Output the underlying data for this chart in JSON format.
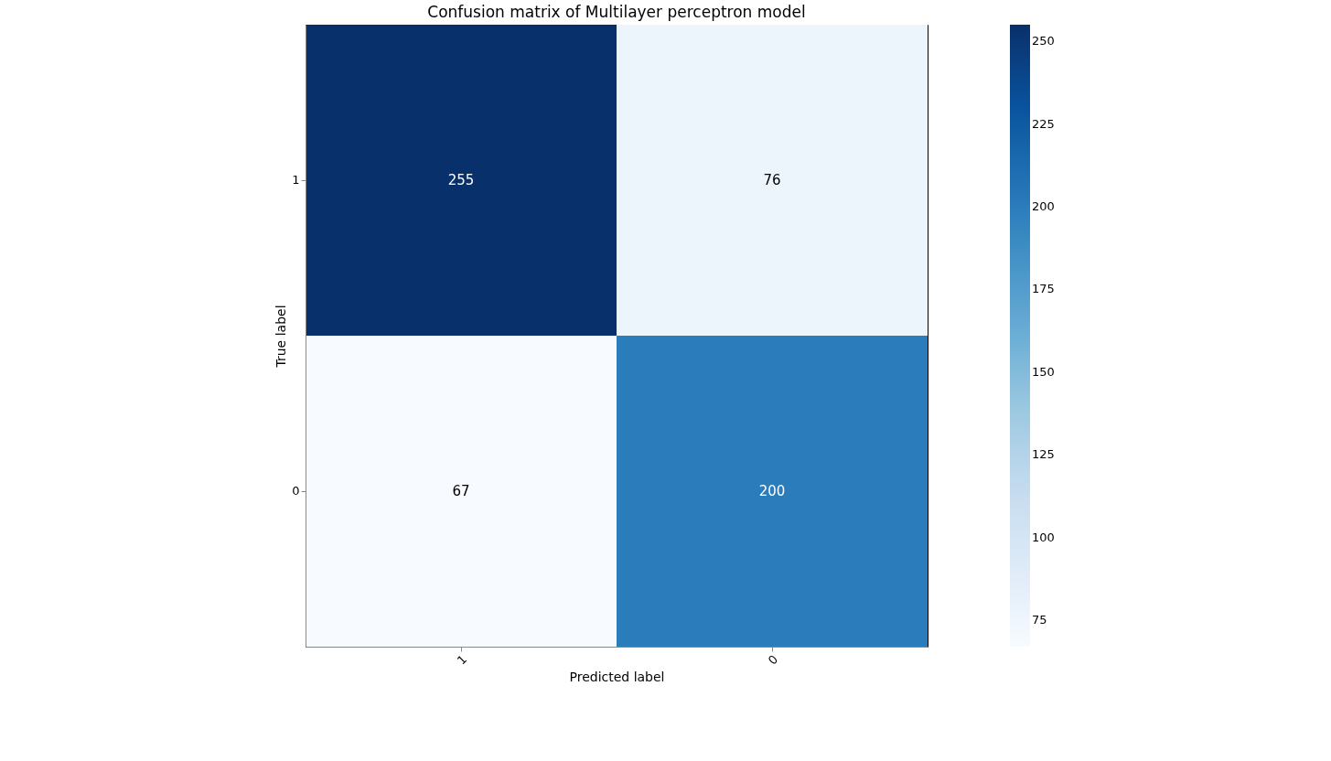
{
  "chart_data": {
    "type": "heatmap",
    "title": "Confusion matrix of Multilayer perceptron model",
    "xlabel": "Predicted label",
    "ylabel": "True label",
    "categories": [
      "1",
      "0"
    ],
    "y_categories": [
      "1",
      "0"
    ],
    "cells": [
      [
        255,
        76
      ],
      [
        67,
        200
      ]
    ],
    "clim": [
      67,
      255
    ],
    "cticks": [
      75,
      100,
      125,
      150,
      175,
      200,
      225,
      250
    ],
    "data_labels": true
  }
}
